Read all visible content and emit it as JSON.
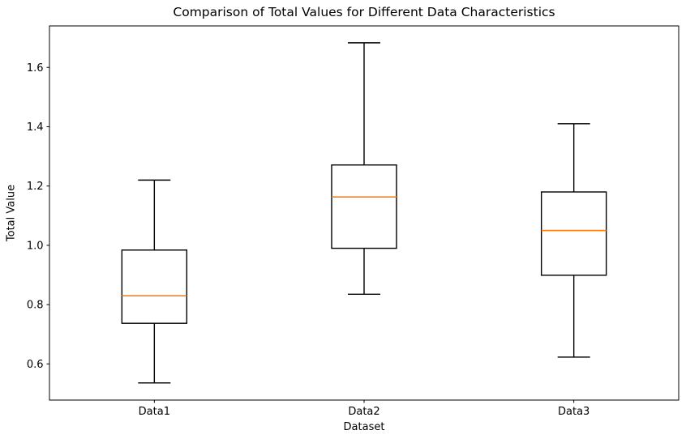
{
  "figure": {
    "title": "Comparison of Total Values for Different Data Characteristics",
    "xlabel": "Dataset",
    "ylabel": "Total Value"
  },
  "chart_data": {
    "type": "boxplot",
    "title": "Comparison of Total Values for Different Data Characteristics",
    "xlabel": "Dataset",
    "ylabel": "Total Value",
    "categories": [
      "Data1",
      "Data2",
      "Data3"
    ],
    "yticks": [
      0.6,
      0.8,
      1.0,
      1.2,
      1.4,
      1.6
    ],
    "ylim": [
      0.478,
      1.74
    ],
    "grid": false,
    "legend": null,
    "box_width_axis_units": 0.31,
    "series": [
      {
        "name": "Data1",
        "whisker_low": 0.536,
        "q1": 0.737,
        "median": 0.83,
        "q3": 0.984,
        "whisker_high": 1.22
      },
      {
        "name": "Data2",
        "whisker_low": 0.835,
        "q1": 0.99,
        "median": 1.163,
        "q3": 1.271,
        "whisker_high": 1.683
      },
      {
        "name": "Data3",
        "whisker_low": 0.623,
        "q1": 0.899,
        "median": 1.05,
        "q3": 1.18,
        "whisker_high": 1.41
      }
    ],
    "colors": {
      "box": "#000000",
      "median": "#ff7f0e",
      "axis": "#000000",
      "background": "#ffffff"
    }
  }
}
